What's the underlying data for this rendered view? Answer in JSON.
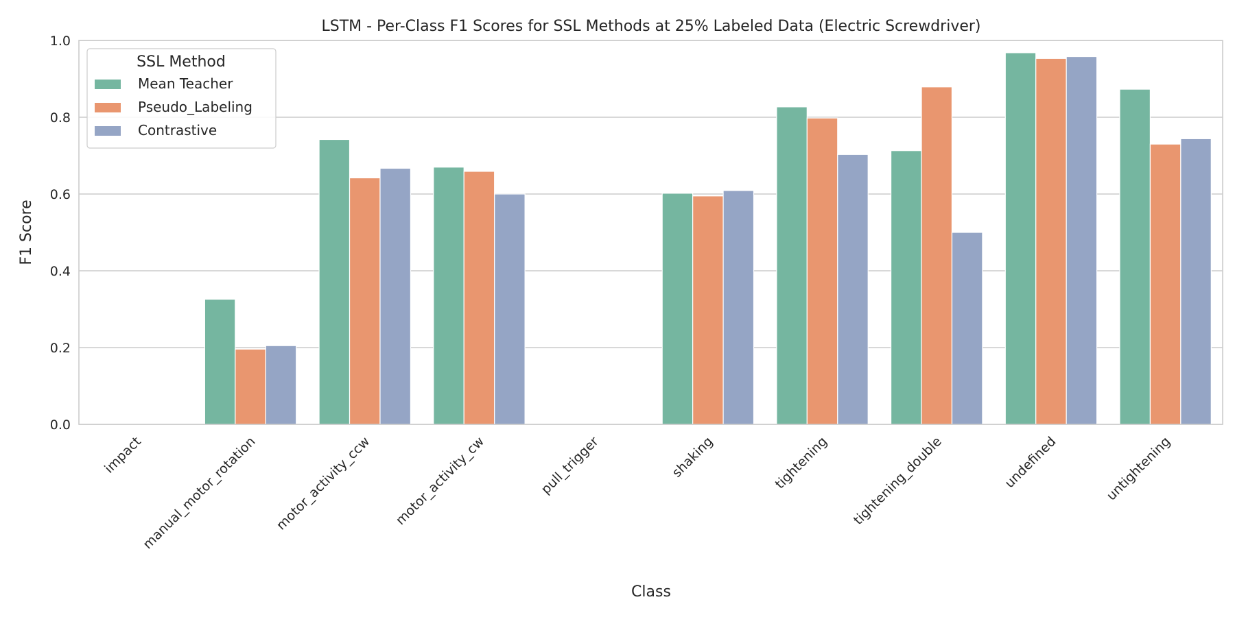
{
  "chart_data": {
    "type": "bar",
    "title": "LSTM - Per-Class F1 Scores for SSL Methods at 25% Labeled Data (Electric Screwdriver)",
    "xlabel": "Class",
    "ylabel": "F1 Score",
    "ylim": [
      0,
      1.0
    ],
    "yticks": [
      "0.0",
      "0.2",
      "0.4",
      "0.6",
      "0.8",
      "1.0"
    ],
    "grid": "horizontal",
    "legend": {
      "title": "SSL Method",
      "placement": "top-left"
    },
    "categories": [
      "impact",
      "manual_motor_rotation",
      "motor_activity_ccw",
      "motor_activity_cw",
      "pull_trigger",
      "shaking",
      "tightening",
      "tightening_double",
      "undefined",
      "untightening"
    ],
    "series": [
      {
        "name": "Mean Teacher",
        "color": "#75b6a0",
        "values": [
          0.0,
          0.326,
          0.742,
          0.67,
          0.0,
          0.602,
          0.827,
          0.713,
          0.968,
          0.873
        ]
      },
      {
        "name": "Pseudo_Labeling",
        "color": "#e9966f",
        "values": [
          0.0,
          0.196,
          0.642,
          0.659,
          0.0,
          0.595,
          0.798,
          0.879,
          0.953,
          0.73
        ]
      },
      {
        "name": "Contrastive",
        "color": "#95a5c5",
        "values": [
          0.0,
          0.205,
          0.667,
          0.6,
          0.0,
          0.609,
          0.703,
          0.5,
          0.958,
          0.744
        ]
      }
    ]
  }
}
